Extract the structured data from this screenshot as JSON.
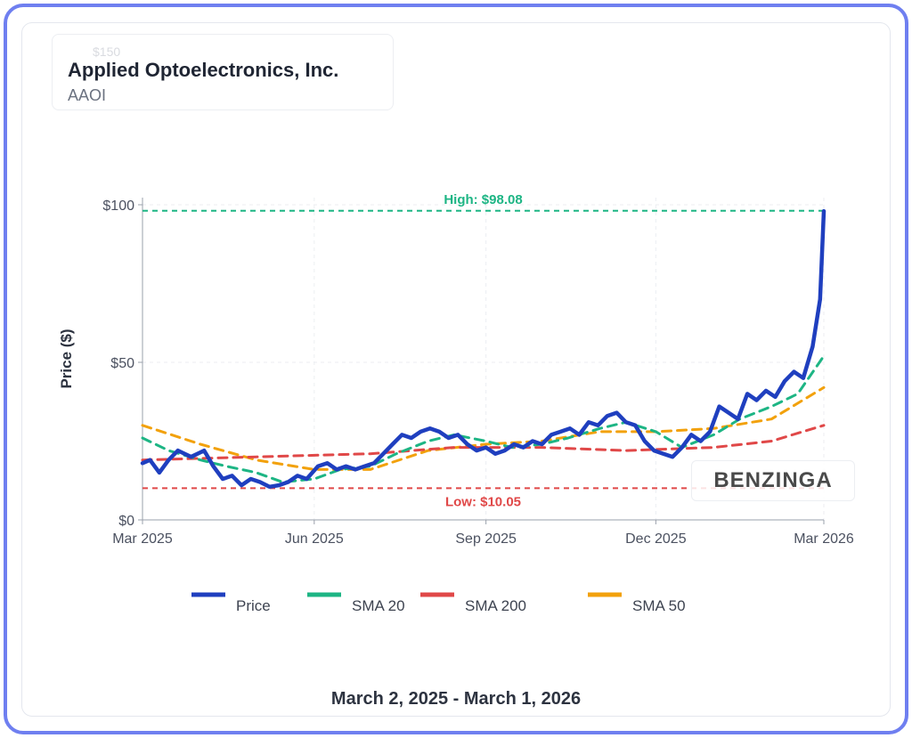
{
  "header": {
    "company": "Applied Optoelectronics, Inc.",
    "ticker": "AAOI",
    "ghost_tick": "$150"
  },
  "date_range": "March 2, 2025 - March 1, 2026",
  "watermark": "BENZINGA",
  "chart_data": {
    "type": "line",
    "ylabel": "Price ($)",
    "ylim": [
      0,
      100
    ],
    "xlim": [
      "2025-03-01",
      "2026-03-01"
    ],
    "y_ticks": [
      {
        "value": 0,
        "label": "$0"
      },
      {
        "value": 50,
        "label": "$50"
      },
      {
        "value": 100,
        "label": "$100"
      }
    ],
    "x_ticks": [
      {
        "date": "2025-03-01",
        "label": "Mar 2025"
      },
      {
        "date": "2025-06-01",
        "label": "Jun 2025"
      },
      {
        "date": "2025-09-01",
        "label": "Sep 2025"
      },
      {
        "date": "2025-12-01",
        "label": "Dec 2025"
      },
      {
        "date": "2026-03-01",
        "label": "Mar 2026"
      }
    ],
    "grid": true,
    "legend": "bottom",
    "reference_lines": [
      {
        "name": "high",
        "label": "High: $98.08",
        "value": 98.08,
        "color": "#1db584"
      },
      {
        "name": "low",
        "label": "Low: $10.05",
        "value": 10.05,
        "color": "#e04848"
      }
    ],
    "series": [
      {
        "name": "Price",
        "color": "#1f3fbf",
        "dash": "solid",
        "points": [
          [
            "2025-03-01",
            18
          ],
          [
            "2025-03-05",
            19
          ],
          [
            "2025-03-10",
            15
          ],
          [
            "2025-03-15",
            19
          ],
          [
            "2025-03-20",
            22
          ],
          [
            "2025-03-27",
            20
          ],
          [
            "2025-04-03",
            22
          ],
          [
            "2025-04-08",
            17
          ],
          [
            "2025-04-13",
            13
          ],
          [
            "2025-04-18",
            14
          ],
          [
            "2025-04-23",
            11
          ],
          [
            "2025-04-28",
            13
          ],
          [
            "2025-05-03",
            12
          ],
          [
            "2025-05-08",
            10.5
          ],
          [
            "2025-05-13",
            11
          ],
          [
            "2025-05-18",
            12
          ],
          [
            "2025-05-23",
            14
          ],
          [
            "2025-05-28",
            13
          ],
          [
            "2025-06-03",
            17
          ],
          [
            "2025-06-08",
            18
          ],
          [
            "2025-06-13",
            16
          ],
          [
            "2025-06-18",
            17
          ],
          [
            "2025-06-23",
            16
          ],
          [
            "2025-06-28",
            17
          ],
          [
            "2025-07-03",
            18
          ],
          [
            "2025-07-08",
            21
          ],
          [
            "2025-07-13",
            24
          ],
          [
            "2025-07-18",
            27
          ],
          [
            "2025-07-23",
            26
          ],
          [
            "2025-07-28",
            28
          ],
          [
            "2025-08-02",
            29
          ],
          [
            "2025-08-07",
            28
          ],
          [
            "2025-08-12",
            26
          ],
          [
            "2025-08-17",
            27
          ],
          [
            "2025-08-22",
            24
          ],
          [
            "2025-08-27",
            22
          ],
          [
            "2025-09-01",
            23
          ],
          [
            "2025-09-06",
            21
          ],
          [
            "2025-09-11",
            22
          ],
          [
            "2025-09-16",
            24
          ],
          [
            "2025-09-21",
            23
          ],
          [
            "2025-09-26",
            25
          ],
          [
            "2025-10-01",
            24
          ],
          [
            "2025-10-06",
            27
          ],
          [
            "2025-10-11",
            28
          ],
          [
            "2025-10-16",
            29
          ],
          [
            "2025-10-21",
            27
          ],
          [
            "2025-10-26",
            31
          ],
          [
            "2025-10-31",
            30
          ],
          [
            "2025-11-05",
            33
          ],
          [
            "2025-11-10",
            34
          ],
          [
            "2025-11-15",
            31
          ],
          [
            "2025-11-20",
            30
          ],
          [
            "2025-11-25",
            25
          ],
          [
            "2025-11-30",
            22
          ],
          [
            "2025-12-05",
            21
          ],
          [
            "2025-12-10",
            20
          ],
          [
            "2025-12-15",
            23
          ],
          [
            "2025-12-20",
            27
          ],
          [
            "2025-12-25",
            25
          ],
          [
            "2025-12-30",
            28
          ],
          [
            "2026-01-04",
            36
          ],
          [
            "2026-01-09",
            34
          ],
          [
            "2026-01-14",
            32
          ],
          [
            "2026-01-19",
            40
          ],
          [
            "2026-01-24",
            38
          ],
          [
            "2026-01-29",
            41
          ],
          [
            "2026-02-03",
            39
          ],
          [
            "2026-02-08",
            44
          ],
          [
            "2026-02-13",
            47
          ],
          [
            "2026-02-18",
            45
          ],
          [
            "2026-02-23",
            55
          ],
          [
            "2026-02-27",
            70
          ],
          [
            "2026-03-01",
            98
          ]
        ]
      },
      {
        "name": "SMA 20",
        "color": "#1db584",
        "dash": "dashed",
        "points": [
          [
            "2025-03-01",
            26
          ],
          [
            "2025-03-15",
            22
          ],
          [
            "2025-04-01",
            19
          ],
          [
            "2025-04-15",
            17
          ],
          [
            "2025-05-01",
            15
          ],
          [
            "2025-05-15",
            12
          ],
          [
            "2025-06-01",
            13
          ],
          [
            "2025-06-15",
            16
          ],
          [
            "2025-07-01",
            17
          ],
          [
            "2025-07-15",
            21
          ],
          [
            "2025-08-01",
            25
          ],
          [
            "2025-08-15",
            27
          ],
          [
            "2025-09-01",
            25
          ],
          [
            "2025-09-15",
            23
          ],
          [
            "2025-10-01",
            24
          ],
          [
            "2025-10-15",
            26
          ],
          [
            "2025-11-01",
            29
          ],
          [
            "2025-11-15",
            31
          ],
          [
            "2025-12-01",
            28
          ],
          [
            "2025-12-15",
            23
          ],
          [
            "2026-01-01",
            27
          ],
          [
            "2026-01-15",
            32
          ],
          [
            "2026-02-01",
            36
          ],
          [
            "2026-02-15",
            40
          ],
          [
            "2026-03-01",
            52
          ]
        ]
      },
      {
        "name": "SMA 200",
        "color": "#e04848",
        "dash": "dashed",
        "points": [
          [
            "2025-03-01",
            19
          ],
          [
            "2025-05-01",
            20
          ],
          [
            "2025-07-01",
            21
          ],
          [
            "2025-08-15",
            23
          ],
          [
            "2025-10-01",
            23
          ],
          [
            "2025-11-15",
            22
          ],
          [
            "2026-01-01",
            23
          ],
          [
            "2026-02-01",
            25
          ],
          [
            "2026-03-01",
            30
          ]
        ]
      },
      {
        "name": "SMA 50",
        "color": "#f2a10c",
        "dash": "dashed",
        "points": [
          [
            "2025-03-01",
            30
          ],
          [
            "2025-04-01",
            24
          ],
          [
            "2025-05-01",
            19
          ],
          [
            "2025-06-01",
            16
          ],
          [
            "2025-07-01",
            16
          ],
          [
            "2025-08-01",
            22
          ],
          [
            "2025-09-01",
            24
          ],
          [
            "2025-10-01",
            25
          ],
          [
            "2025-11-01",
            28
          ],
          [
            "2025-12-01",
            28
          ],
          [
            "2026-01-01",
            29
          ],
          [
            "2026-02-01",
            32
          ],
          [
            "2026-03-01",
            42
          ]
        ]
      }
    ]
  }
}
